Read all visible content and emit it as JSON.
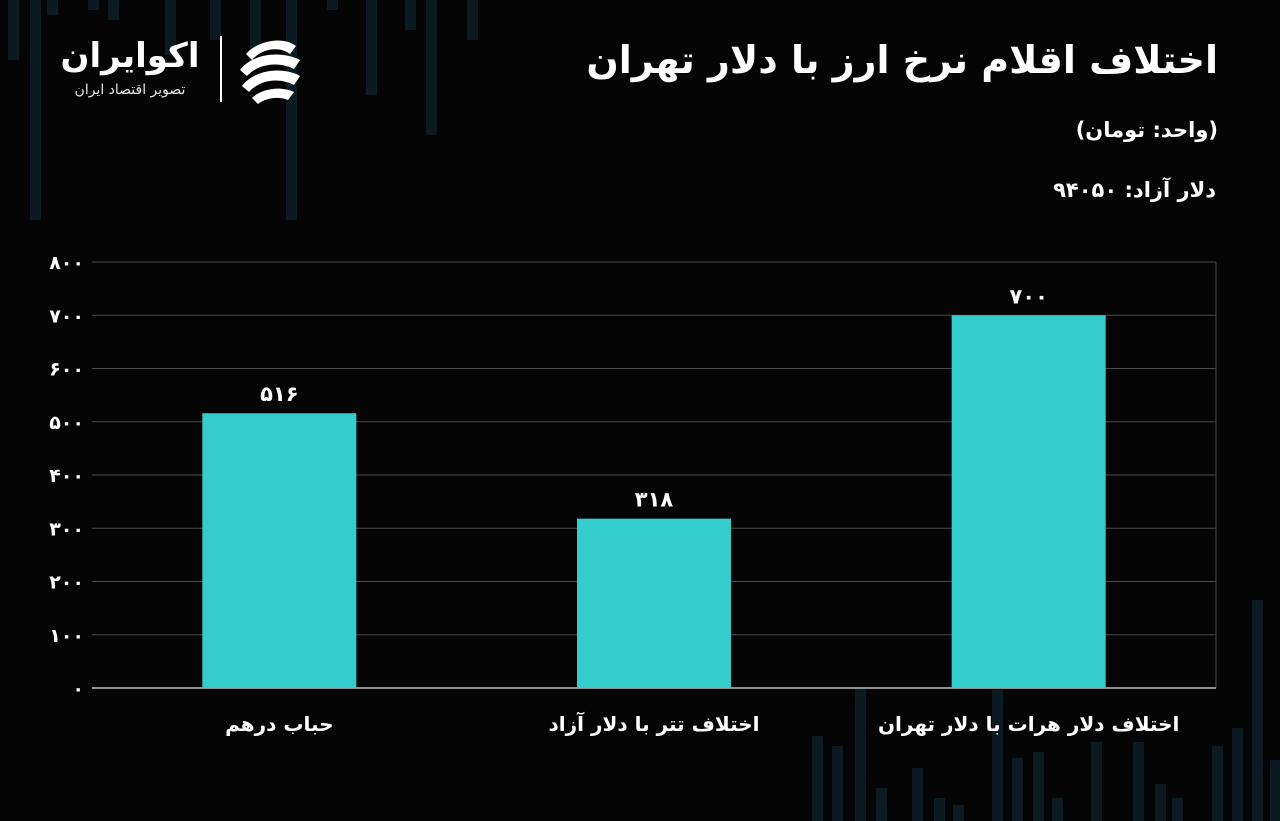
{
  "header": {
    "title": "اختلاف اقلام نرخ ارز با دلار تهران",
    "unit": "(واحد: تومان)",
    "free_dollar": "دلار آزاد: ۹۴۰۵۰"
  },
  "logo": {
    "name": "اکوایران",
    "tagline": "تصویر اقتصاد ایران",
    "icon": "ecoiran-logo-icon"
  },
  "colors": {
    "background": "#050505",
    "bar": "#34CCCC",
    "grid": "#4a4a4a",
    "text": "#ffffff",
    "bg_candles": "#0c1a22"
  },
  "chart_data": {
    "type": "bar",
    "categories": [
      "اختلاف دلار هرات با دلار تهران",
      "اختلاف تتر با دلار آزاد",
      "حباب درهم"
    ],
    "values": [
      700,
      318,
      516
    ],
    "value_labels": [
      "۷۰۰",
      "۳۱۸",
      "۵۱۶"
    ],
    "ylim": [
      0,
      800
    ],
    "yticks": [
      0,
      100,
      200,
      300,
      400,
      500,
      600,
      700,
      800
    ],
    "ytick_labels": [
      "۰",
      "۱۰۰",
      "۲۰۰",
      "۳۰۰",
      "۴۰۰",
      "۵۰۰",
      "۶۰۰",
      "۷۰۰",
      "۸۰۰"
    ],
    "category_order": "right-to-left",
    "grid": true,
    "legend": "none",
    "xlabel": "",
    "ylabel": ""
  }
}
